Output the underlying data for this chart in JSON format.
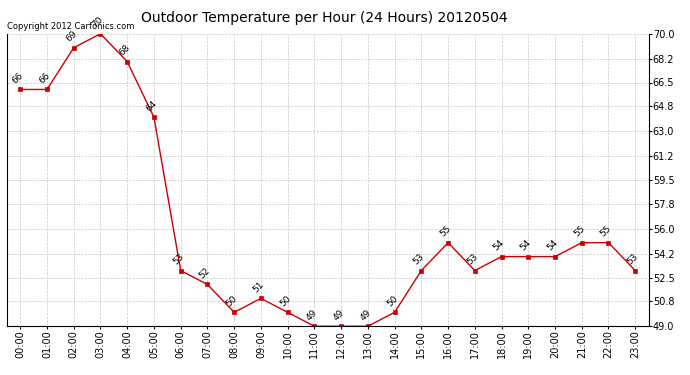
{
  "title": "Outdoor Temperature per Hour (24 Hours) 20120504",
  "copyright_text": "Copyright 2012 Carfonics.com",
  "hours": [
    "00:00",
    "01:00",
    "02:00",
    "03:00",
    "04:00",
    "05:00",
    "06:00",
    "07:00",
    "08:00",
    "09:00",
    "10:00",
    "11:00",
    "12:00",
    "13:00",
    "14:00",
    "15:00",
    "16:00",
    "17:00",
    "18:00",
    "19:00",
    "20:00",
    "21:00",
    "22:00",
    "23:00"
  ],
  "temps": [
    66,
    66,
    69,
    70,
    68,
    64,
    53,
    52,
    50,
    51,
    50,
    49,
    49,
    49,
    50,
    53,
    55,
    53,
    54,
    54,
    54,
    55,
    55,
    53
  ],
  "ylim": [
    49.0,
    70.0
  ],
  "yticks": [
    49.0,
    50.8,
    52.5,
    54.2,
    56.0,
    57.8,
    59.5,
    61.2,
    63.0,
    64.8,
    66.5,
    68.2,
    70.0
  ],
  "line_color": "#cc0000",
  "marker_color": "#cc0000",
  "bg_color": "#ffffff",
  "grid_color": "#c8c8c8",
  "title_fontsize": 10,
  "tick_fontsize": 7,
  "annot_fontsize": 6.5,
  "copyright_fontsize": 6
}
